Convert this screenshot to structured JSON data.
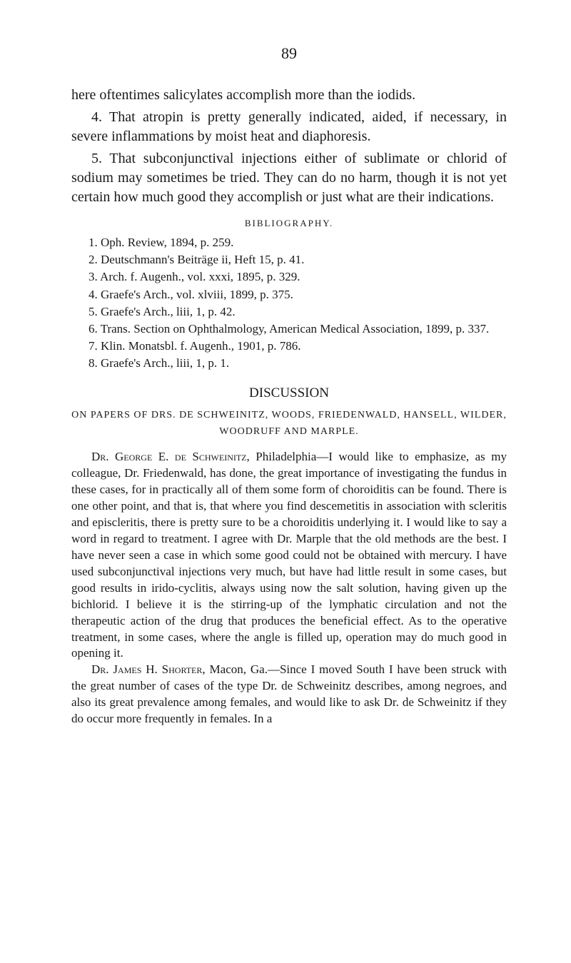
{
  "page_number": "89",
  "para1": "here oftentimes salicylates accomplish more than the iodids.",
  "para2": "4. That atropin is pretty generally indicated, aided, if necessary, in severe inflammations by moist heat and diaphoresis.",
  "para3": "5. That subconjunctival injections either of sublimate or chlorid of sodium may sometimes be tried. They can do no harm, though it is not yet certain how much good they accomplish or just what are their indications.",
  "bib_heading": "BIBLIOGRAPHY.",
  "bib1": "1. Oph. Review, 1894, p. 259.",
  "bib2": "2. Deutschmann's Beiträge ii, Heft 15, p. 41.",
  "bib3": "3. Arch. f. Augenh., vol. xxxi, 1895, p. 329.",
  "bib4": "4. Graefe's Arch., vol. xlviii, 1899, p. 375.",
  "bib5": "5. Graefe's Arch., liii, 1, p. 42.",
  "bib6": "6. Trans. Section on Ophthalmology, American Medical Association, 1899, p. 337.",
  "bib7": "7. Klin. Monatsbl. f. Augenh., 1901, p. 786.",
  "bib8": "8. Graefe's Arch., liii, 1, p. 1.",
  "discussion_heading": "DISCUSSION",
  "discussion_sub": "ON PAPERS OF DRS. DE SCHWEINITZ, WOODS, FRIEDENWALD, HANSELL, WILDER, WOODRUFF AND MARPLE.",
  "disc_para1_prefix": "Dr. George E. de Schweinitz",
  "disc_para1_body": ", Philadelphia—I would like to emphasize, as my colleague, Dr. Friedenwald, has done, the great importance of investigating the fundus in these cases, for in practically all of them some form of choroiditis can be found. There is one other point, and that is, that where you find descemetitis in association with scleritis and episcleritis, there is pretty sure to be a choroiditis underlying it. I would like to say a word in regard to treatment. I agree with Dr. Marple that the old methods are the best. I have never seen a case in which some good could not be obtained with mercury. I have used subconjunctival injections very much, but have had little result in some cases, but good results in irido-cyclitis, always using now the salt solution, having given up the bichlorid. I believe it is the stirring-up of the lymphatic circulation and not the therapeutic action of the drug that produces the beneficial effect. As to the operative treatment, in some cases, where the angle is filled up, operation may do much good in opening it.",
  "disc_para2_prefix": "Dr. James H. Shorter",
  "disc_para2_body": ", Macon, Ga.—Since I moved South I have been struck with the great number of cases of the type Dr. de Schweinitz describes, among negroes, and also its great prevalence among females, and would like to ask Dr. de Schweinitz if they do occur more frequently in females. In a"
}
